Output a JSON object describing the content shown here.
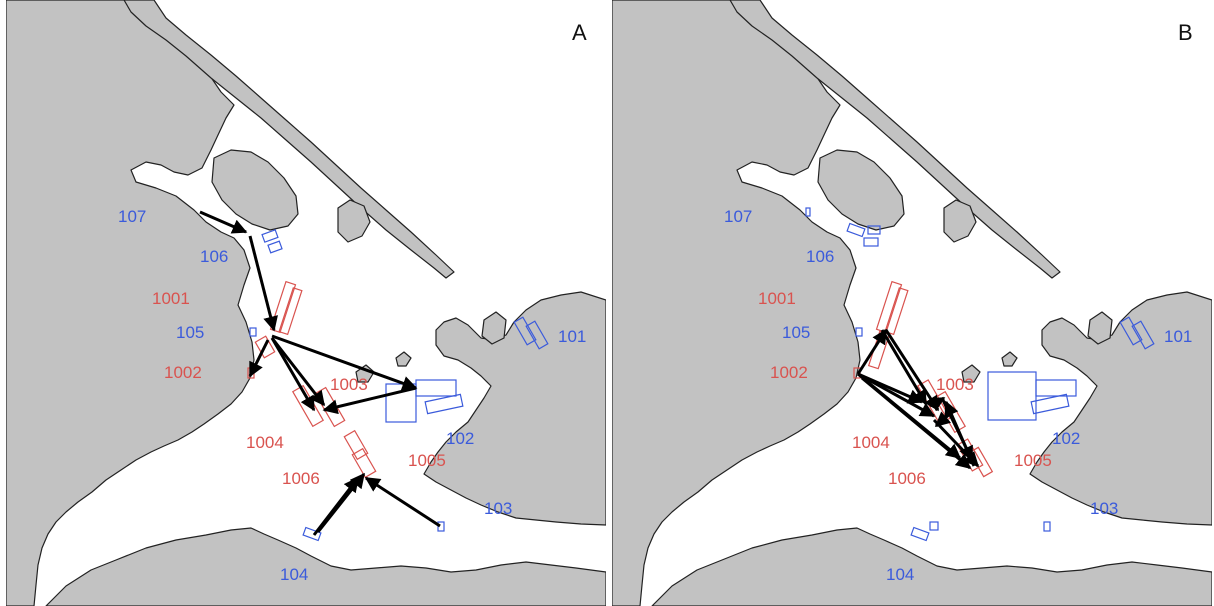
{
  "colors": {
    "land": "#c2c2c2",
    "water": "#ffffff",
    "coast": "#222222",
    "site_label_blue": "#3b5bdb",
    "site_label_red": "#d9534f",
    "arrow": "#000000"
  },
  "panels": [
    {
      "panel_label": "A",
      "labels": [
        {
          "text": "107",
          "kind": "blue"
        },
        {
          "text": "106",
          "kind": "blue"
        },
        {
          "text": "1001",
          "kind": "red"
        },
        {
          "text": "105",
          "kind": "blue"
        },
        {
          "text": "1002",
          "kind": "red"
        },
        {
          "text": "1003",
          "kind": "red"
        },
        {
          "text": "1004",
          "kind": "red"
        },
        {
          "text": "1006",
          "kind": "red"
        },
        {
          "text": "1005",
          "kind": "red"
        },
        {
          "text": "102",
          "kind": "blue"
        },
        {
          "text": "101",
          "kind": "blue"
        },
        {
          "text": "103",
          "kind": "blue"
        },
        {
          "text": "104",
          "kind": "blue"
        }
      ]
    },
    {
      "panel_label": "B",
      "labels": [
        {
          "text": "107",
          "kind": "blue"
        },
        {
          "text": "106",
          "kind": "blue"
        },
        {
          "text": "1001",
          "kind": "red"
        },
        {
          "text": "105",
          "kind": "blue"
        },
        {
          "text": "1002",
          "kind": "red"
        },
        {
          "text": "1003",
          "kind": "red"
        },
        {
          "text": "1004",
          "kind": "red"
        },
        {
          "text": "1006",
          "kind": "red"
        },
        {
          "text": "1005",
          "kind": "red"
        },
        {
          "text": "102",
          "kind": "blue"
        },
        {
          "text": "101",
          "kind": "blue"
        },
        {
          "text": "103",
          "kind": "blue"
        },
        {
          "text": "104",
          "kind": "blue"
        }
      ]
    }
  ]
}
